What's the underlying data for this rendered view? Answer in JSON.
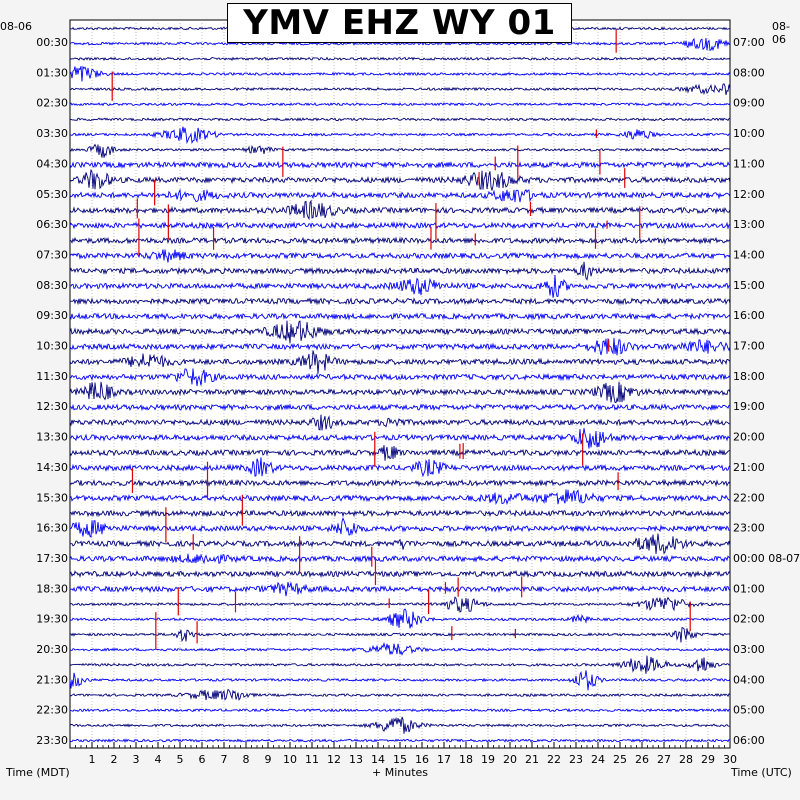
{
  "title": "YMV EHZ WY 01",
  "date_left": "08-06",
  "date_right": "08-06",
  "axis": {
    "left_label": "Time (MDT)",
    "center_label": "+ Minutes",
    "right_label": "Time (UTC)"
  },
  "chart_data": {
    "type": "helicorder",
    "title": "YMV EHZ WY 01",
    "xlabel": "+ Minutes",
    "ylabel_left": "Time (MDT)",
    "ylabel_right": "Time (UTC)",
    "xlim": [
      0,
      30
    ],
    "x_ticks": [
      "1",
      "2",
      "3",
      "4",
      "5",
      "6",
      "7",
      "8",
      "9",
      "10",
      "11",
      "12",
      "13",
      "14",
      "15",
      "16",
      "17",
      "18",
      "19",
      "20",
      "21",
      "22",
      "23",
      "24",
      "25",
      "26",
      "27",
      "28",
      "29",
      "30"
    ],
    "left_labels": [
      "00:30",
      "01:30",
      "02:30",
      "03:30",
      "04:30",
      "05:30",
      "06:30",
      "07:30",
      "08:30",
      "09:30",
      "10:30",
      "11:30",
      "12:30",
      "13:30",
      "14:30",
      "15:30",
      "16:30",
      "17:30",
      "18:30",
      "19:30",
      "20:30",
      "21:30",
      "22:30",
      "23:30"
    ],
    "right_labels": [
      "07:00",
      "08:00",
      "09:00",
      "10:00",
      "11:00",
      "12:00",
      "13:00",
      "14:00",
      "15:00",
      "16:00",
      "17:00",
      "18:00",
      "19:00",
      "20:00",
      "21:00",
      "22:00",
      "23:00",
      "00:00 08-07",
      "01:00",
      "02:00",
      "03:00",
      "04:00",
      "05:00",
      "06:00"
    ],
    "trace_count": 48,
    "trace_colors": [
      "#00007a",
      "#0000ff"
    ],
    "spike_color": "#e00000",
    "grid": true
  },
  "colors": {
    "background": "#f4f4f4",
    "plot_background": "#ffffff",
    "trace_dark": "#00007a",
    "trace_blue": "#0000ff",
    "spike": "#e00000"
  }
}
